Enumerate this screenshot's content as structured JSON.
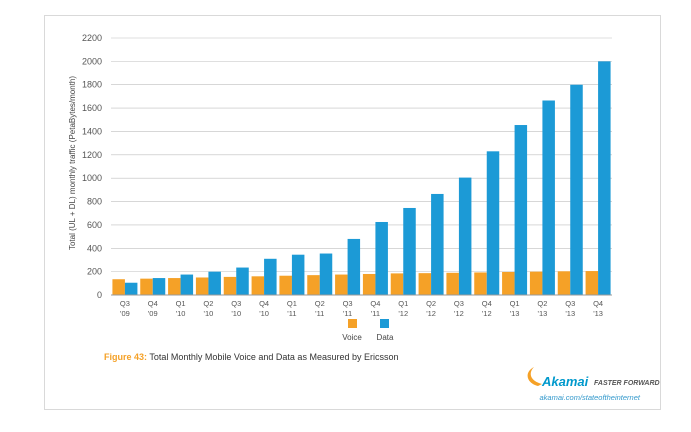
{
  "chart_data": {
    "type": "bar",
    "ylabel": "Total (UL + DL) monthly traffic (PetaBytes/month)",
    "xlabel": "",
    "ylim": [
      0,
      2200
    ],
    "yticks": [
      0,
      200,
      400,
      600,
      800,
      1000,
      1200,
      1400,
      1600,
      1800,
      2000,
      2200
    ],
    "grid": true,
    "legend_position": "bottom-center",
    "categories": [
      [
        "Q3",
        "'09"
      ],
      [
        "Q4",
        "'09"
      ],
      [
        "Q1",
        "'10"
      ],
      [
        "Q2",
        "'10"
      ],
      [
        "Q3",
        "'10"
      ],
      [
        "Q4",
        "'10"
      ],
      [
        "Q1",
        "'11"
      ],
      [
        "Q2",
        "'11"
      ],
      [
        "Q3",
        "'11"
      ],
      [
        "Q4",
        "'11"
      ],
      [
        "Q1",
        "'12"
      ],
      [
        "Q2",
        "'12"
      ],
      [
        "Q3",
        "'12"
      ],
      [
        "Q4",
        "'12"
      ],
      [
        "Q1",
        "'13"
      ],
      [
        "Q2",
        "'13"
      ],
      [
        "Q3",
        "'13"
      ],
      [
        "Q4",
        "'13"
      ]
    ],
    "series": [
      {
        "name": "Voice",
        "color": "#f5a127",
        "values": [
          135,
          140,
          145,
          150,
          155,
          160,
          165,
          170,
          175,
          180,
          185,
          187,
          190,
          193,
          197,
          200,
          203,
          205
        ]
      },
      {
        "name": "Data",
        "color": "#1c9ad6",
        "values": [
          105,
          145,
          175,
          200,
          235,
          310,
          345,
          355,
          480,
          625,
          745,
          865,
          1005,
          1230,
          1455,
          1665,
          1800,
          2000
        ]
      }
    ]
  },
  "caption": {
    "lead": "Figure 43:",
    "text": " Total Monthly Mobile Voice and Data as Measured by Ericsson"
  },
  "brand": {
    "name": "Akamai",
    "tagline": "FASTER FORWARD",
    "url": "akamai.com/stateoftheinternet",
    "color": "#0099cc"
  }
}
